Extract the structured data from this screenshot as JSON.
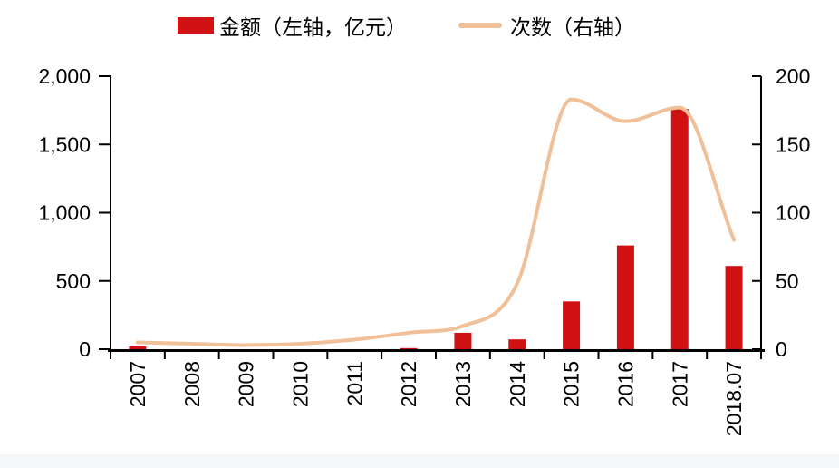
{
  "legend": {
    "amount": {
      "label": "金额（左轴，亿元）",
      "color": "#d21212"
    },
    "count": {
      "label": "次数（右轴）",
      "color": "#f0c098"
    }
  },
  "chart_data": {
    "type": "bar+line",
    "title": "",
    "categories": [
      "2007",
      "2008",
      "2009",
      "2010",
      "2011",
      "2012",
      "2013",
      "2014",
      "2015",
      "2016",
      "2017",
      "2018.07"
    ],
    "series": [
      {
        "name": "金额（左轴，亿元）",
        "type": "bar",
        "axis": "left",
        "color": "#d21212",
        "values": [
          20,
          0,
          0,
          0,
          0,
          8,
          120,
          72,
          350,
          760,
          1760,
          610
        ]
      },
      {
        "name": "次数（右轴）",
        "type": "line",
        "axis": "right",
        "color": "#f0c098",
        "values": [
          5,
          4,
          3,
          4,
          7,
          12,
          17,
          48,
          183,
          167,
          177,
          80
        ]
      }
    ],
    "left_axis": {
      "lim": [
        0,
        2000
      ],
      "tick_values": [
        0,
        500,
        1000,
        1500,
        2000
      ],
      "tick_labels": [
        "0",
        "500",
        "1,000",
        "1,500",
        "2,000"
      ]
    },
    "right_axis": {
      "lim": [
        0,
        200
      ],
      "tick_values": [
        0,
        50,
        100,
        150,
        200
      ],
      "tick_labels": [
        "0",
        "50",
        "100",
        "150",
        "200"
      ]
    },
    "grid": false,
    "legend_position": "top",
    "axis_color": "#000000",
    "background_color": "#ffffff"
  }
}
